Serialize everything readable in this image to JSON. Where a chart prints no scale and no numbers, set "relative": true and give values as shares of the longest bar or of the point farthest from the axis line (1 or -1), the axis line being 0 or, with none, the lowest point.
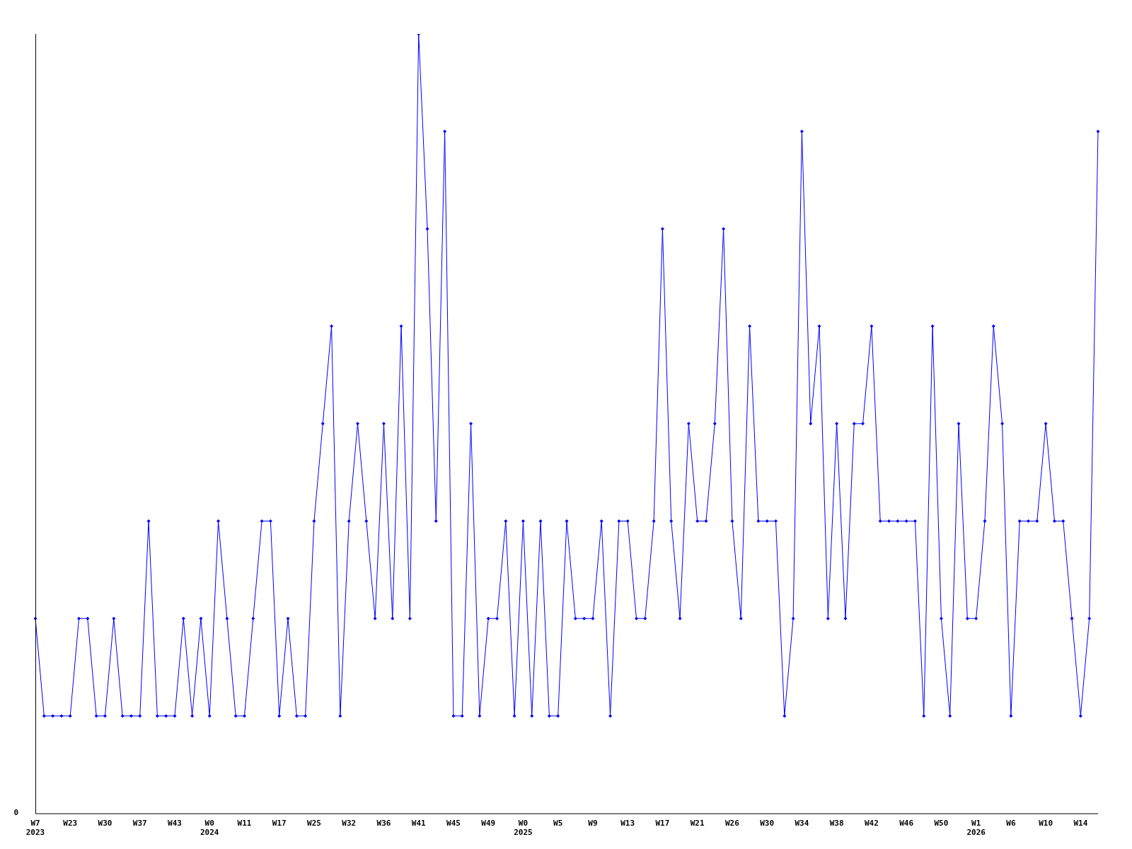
{
  "chart_data": {
    "type": "line",
    "relative": true,
    "color": "#0000ff",
    "marker": "diamond",
    "grid": false,
    "legend": false,
    "annotations": [
      "0"
    ],
    "categories": [
      "W7\n2023",
      null,
      null,
      null,
      "W23",
      null,
      null,
      null,
      "W30",
      null,
      null,
      null,
      "W37",
      null,
      null,
      null,
      "W43",
      null,
      null,
      null,
      "W0\n2024",
      null,
      null,
      null,
      "W11",
      null,
      null,
      null,
      "W17",
      null,
      null,
      null,
      "W25",
      null,
      null,
      null,
      "W32",
      null,
      null,
      null,
      "W36",
      null,
      null,
      null,
      "W41",
      null,
      null,
      null,
      "W45",
      null,
      null,
      null,
      "W49",
      null,
      null,
      null,
      "W0\n2025",
      null,
      null,
      null,
      "W5",
      null,
      null,
      null,
      "W9",
      null,
      null,
      null,
      "W13",
      null,
      null,
      null,
      "W17",
      null,
      null,
      null,
      "W21",
      null,
      null,
      null,
      "W26",
      null,
      null,
      null,
      "W30",
      null,
      null,
      null,
      "W34",
      null,
      null,
      null,
      "W38",
      null,
      null,
      null,
      "W42",
      null,
      null,
      null,
      "W46",
      null,
      null,
      null,
      "W50",
      null,
      null,
      null,
      "W1\n2026",
      null,
      null,
      null,
      "W6",
      null,
      null,
      null,
      "W10",
      null,
      null,
      null,
      "W14",
      null,
      null
    ],
    "values": [
      0.25,
      0.125,
      0.125,
      0.125,
      0.125,
      0.25,
      0.25,
      0.125,
      0.125,
      0.25,
      0.125,
      0.125,
      0.125,
      0.375,
      0.125,
      0.125,
      0.125,
      0.25,
      0.125,
      0.25,
      0.125,
      0.375,
      0.25,
      0.125,
      0.125,
      0.25,
      0.375,
      0.375,
      0.125,
      0.25,
      0.125,
      0.125,
      0.375,
      0.5,
      0.625,
      0.125,
      0.375,
      0.5,
      0.375,
      0.25,
      0.5,
      0.25,
      0.625,
      0.25,
      1,
      0.75,
      0.375,
      0.875,
      0.125,
      0.125,
      0.5,
      0.125,
      0.25,
      0.25,
      0.375,
      0.125,
      0.375,
      0.125,
      0.375,
      0.125,
      0.125,
      0.375,
      0.25,
      0.25,
      0.25,
      0.375,
      0.125,
      0.375,
      0.375,
      0.25,
      0.25,
      0.375,
      0.75,
      0.375,
      0.25,
      0.5,
      0.375,
      0.375,
      0.5,
      0.75,
      0.375,
      0.25,
      0.625,
      0.375,
      0.375,
      0.375,
      0.125,
      0.25,
      0.875,
      0.5,
      0.625,
      0.25,
      0.5,
      0.25,
      0.5,
      0.5,
      0.625,
      0.375,
      0.375,
      0.375,
      0.375,
      0.375,
      0.125,
      0.625,
      0.25,
      0.125,
      0.5,
      0.25,
      0.25,
      0.375,
      0.625,
      0.5,
      0.125,
      0.375,
      0.375,
      0.375,
      0.5,
      0.375,
      0.375,
      0.25,
      0.125,
      0.25,
      0.875
    ]
  }
}
